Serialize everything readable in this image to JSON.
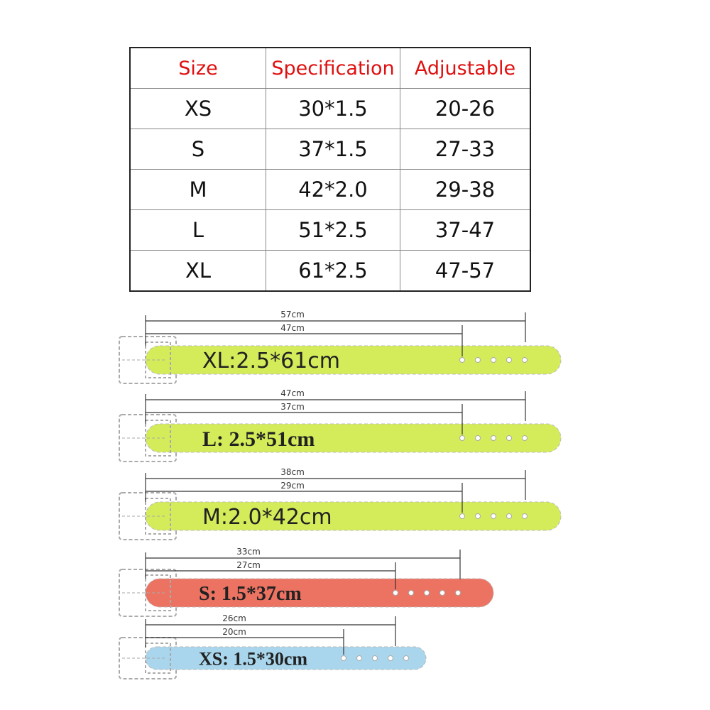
{
  "table": {
    "header": [
      "Size",
      "Specification",
      "Adjustable"
    ],
    "rows": [
      [
        "XS",
        "30*1.5",
        "20-26"
      ],
      [
        "S",
        "37*1.5",
        "27-33"
      ],
      [
        "M",
        "42*2.0",
        "29-38"
      ],
      [
        "L",
        "51*2.5",
        "37-47"
      ],
      [
        "XL",
        "61*2.5",
        "47-57"
      ]
    ]
  },
  "belts": [
    {
      "label": "XL:2.5*61cm",
      "outer": "57cm",
      "inner": "47cm",
      "color": "#d4ec5a"
    },
    {
      "label": "L: 2.5*51cm",
      "outer": "47cm",
      "inner": "37cm",
      "color": "#d4ec5a"
    },
    {
      "label": "M:2.0*42cm",
      "outer": "38cm",
      "inner": "29cm",
      "color": "#d4ec5a"
    },
    {
      "label": "S: 1.5*37cm",
      "outer": "33cm",
      "inner": "27cm",
      "color": "#ec7262"
    },
    {
      "label": "XS: 1.5*30cm",
      "outer": "26cm",
      "inner": "20cm",
      "color": "#a9d6ec"
    }
  ]
}
